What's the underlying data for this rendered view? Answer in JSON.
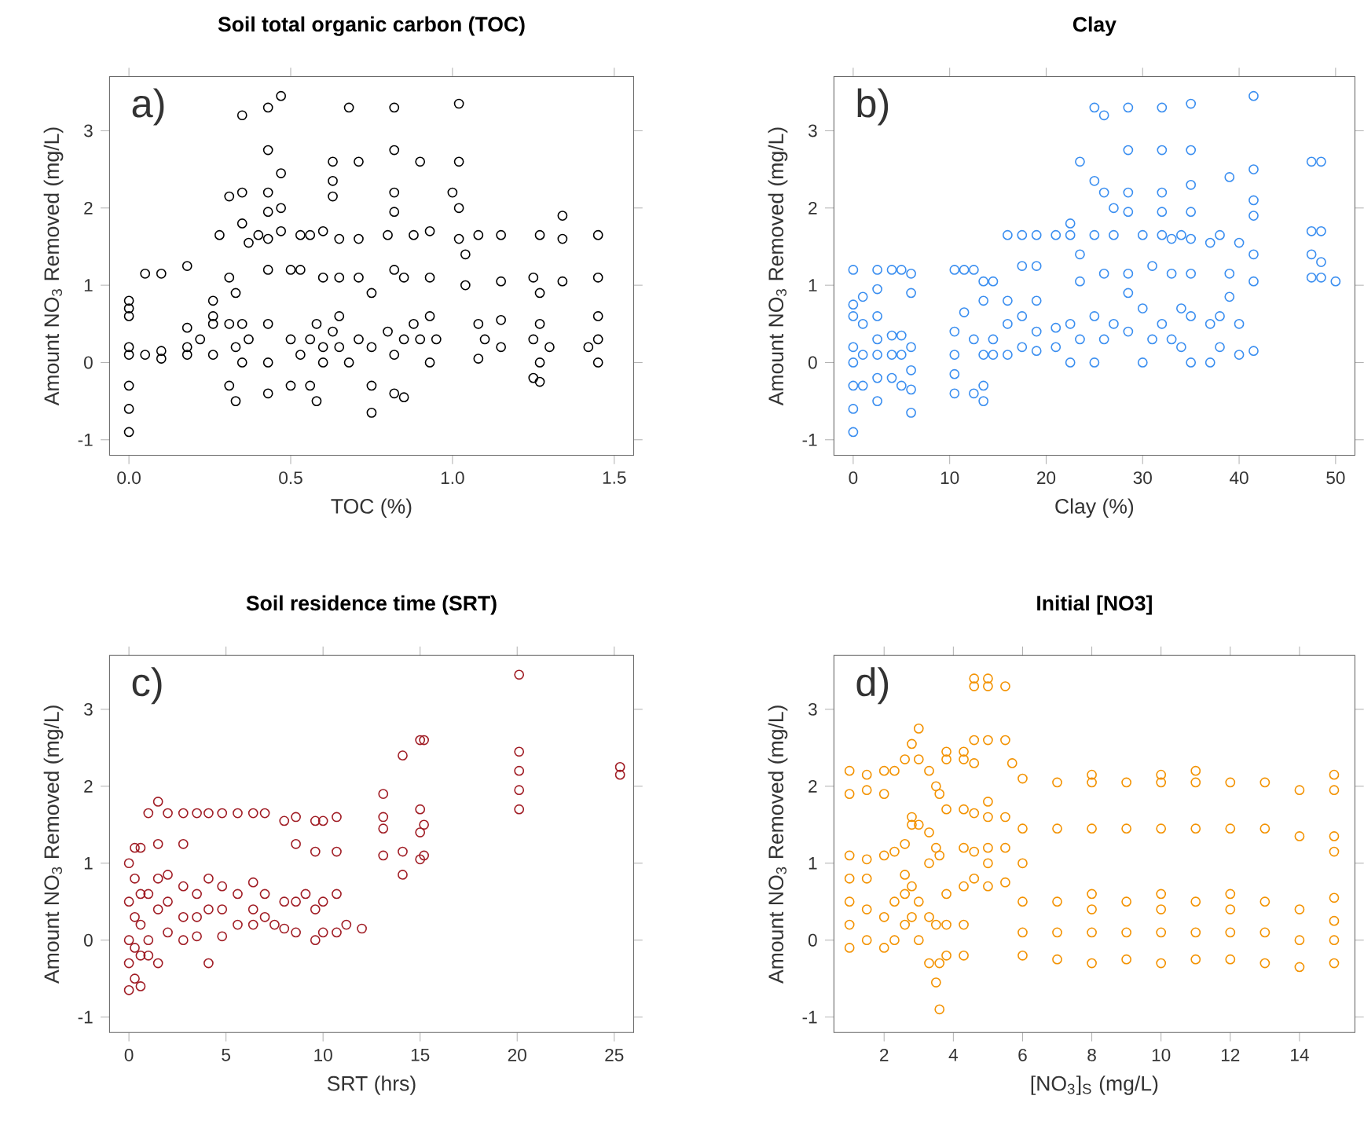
{
  "chart_data": [
    {
      "type": "scatter",
      "title": "Soil total organic carbon (TOC)",
      "xlabel": "TOC (%)",
      "ylabel": "Amount NO$_{3}$ Removed (mg/L)",
      "annotations": [
        "a)"
      ],
      "color": "#000000",
      "marker": "circle",
      "xlim": [
        -0.06,
        1.56
      ],
      "ylim": [
        -1.2,
        3.7
      ],
      "xticks": [
        {
          "value": 0,
          "label": "0.0"
        },
        0.5,
        {
          "value": 1,
          "label": "1.0"
        },
        1.5
      ],
      "yticks": [
        -1,
        0,
        1,
        2,
        3
      ],
      "x": [
        0,
        0,
        0,
        0,
        0,
        0,
        0,
        0,
        0.05,
        0.05,
        0.1,
        0.1,
        0.1,
        0.18,
        0.18,
        0.18,
        0.18,
        0.22,
        0.26,
        0.26,
        0.26,
        0.26,
        0.28,
        0.31,
        0.31,
        0.31,
        0.31,
        0.33,
        0.33,
        0.33,
        0.35,
        0.35,
        0.35,
        0.35,
        0.35,
        0.37,
        0.37,
        0.4,
        0.43,
        0.43,
        0.43,
        0.43,
        0.43,
        0.43,
        0.43,
        0.43,
        0.43,
        0.47,
        0.47,
        0.47,
        0.47,
        0.5,
        0.5,
        0.5,
        0.53,
        0.53,
        0.53,
        0.56,
        0.56,
        0.56,
        0.58,
        0.58,
        0.6,
        0.6,
        0.6,
        0.6,
        0.63,
        0.63,
        0.63,
        0.63,
        0.65,
        0.65,
        0.65,
        0.65,
        0.68,
        0.68,
        0.71,
        0.71,
        0.71,
        0.71,
        0.75,
        0.75,
        0.75,
        0.75,
        0.8,
        0.8,
        0.82,
        0.82,
        0.82,
        0.82,
        0.82,
        0.82,
        0.82,
        0.85,
        0.85,
        0.85,
        0.88,
        0.88,
        0.9,
        0.9,
        0.93,
        0.93,
        0.93,
        0.93,
        0.95,
        1.0,
        1.02,
        1.02,
        1.02,
        1.02,
        1.04,
        1.04,
        1.08,
        1.08,
        1.08,
        1.1,
        1.15,
        1.15,
        1.15,
        1.15,
        1.25,
        1.25,
        1.25,
        1.27,
        1.27,
        1.27,
        1.27,
        1.27,
        1.3,
        1.34,
        1.34,
        1.34,
        1.42,
        1.45,
        1.45,
        1.45,
        1.45,
        1.45
      ],
      "values": [
        0.8,
        0.6,
        0.2,
        0.1,
        -0.3,
        -0.6,
        -0.9,
        0.7,
        1.15,
        0.1,
        1.15,
        0.05,
        0.15,
        1.25,
        0.1,
        0.45,
        0.2,
        0.3,
        0.8,
        0.5,
        0.1,
        0.6,
        1.65,
        2.15,
        1.1,
        0.5,
        -0.3,
        0.9,
        0.2,
        -0.5,
        3.2,
        2.2,
        1.8,
        0.5,
        0,
        1.55,
        0.3,
        1.65,
        3.3,
        2.75,
        2.2,
        1.95,
        1.6,
        1.2,
        0.5,
        0,
        -0.4,
        3.45,
        2.45,
        2.0,
        1.7,
        1.2,
        0.3,
        -0.3,
        1.2,
        1.65,
        0.1,
        1.65,
        0.3,
        -0.3,
        -0.5,
        0.5,
        1.7,
        1.1,
        0.2,
        0,
        2.6,
        2.35,
        2.15,
        0.4,
        1.6,
        1.1,
        0.6,
        0.2,
        3.3,
        0,
        2.6,
        1.6,
        1.1,
        0.3,
        0.9,
        0.2,
        -0.3,
        -0.65,
        1.65,
        0.4,
        3.3,
        2.75,
        2.2,
        1.95,
        1.2,
        0.1,
        -0.4,
        1.1,
        0.3,
        -0.45,
        1.65,
        0.5,
        2.6,
        0.3,
        1.7,
        1.1,
        0.6,
        0,
        0.3,
        2.2,
        3.35,
        2.6,
        2.0,
        1.6,
        1.4,
        1.0,
        1.65,
        0.5,
        0.05,
        0.3,
        1.65,
        1.05,
        0.55,
        0.2,
        1.1,
        0.3,
        -0.2,
        1.65,
        0.9,
        0.5,
        0,
        -0.25,
        0.2,
        1.9,
        1.6,
        1.05,
        0.2,
        1.65,
        1.1,
        0.6,
        0.3,
        0
      ]
    },
    {
      "type": "scatter",
      "title": "Clay",
      "xlabel": "Clay (%)",
      "ylabel": "Amount NO$_{3}$ Removed (mg/L)",
      "annotations": [
        "b)"
      ],
      "color": "#3a8ef0",
      "marker": "circle",
      "xlim": [
        -2,
        52
      ],
      "ylim": [
        -1.2,
        3.7
      ],
      "xticks": [
        0,
        10,
        20,
        30,
        40,
        50
      ],
      "yticks": [
        -1,
        0,
        1,
        2,
        3
      ],
      "x": [
        0,
        0,
        0,
        0,
        0,
        0,
        0,
        0,
        1,
        1,
        1,
        1,
        2.5,
        2.5,
        2.5,
        2.5,
        2.5,
        2.5,
        2.5,
        4,
        4,
        4,
        4,
        5,
        5,
        5,
        5,
        6,
        6,
        6,
        6,
        6,
        6,
        10.5,
        10.5,
        10.5,
        10.5,
        10.5,
        11.5,
        11.5,
        12.5,
        12.5,
        12.5,
        13.5,
        13.5,
        13.5,
        13.5,
        13.5,
        14.5,
        14.5,
        14.5,
        16,
        16,
        16,
        16,
        17.5,
        17.5,
        17.5,
        17.5,
        19,
        19,
        19,
        19,
        19,
        21,
        21,
        21,
        22.5,
        22.5,
        22.5,
        22.5,
        23.5,
        23.5,
        23.5,
        23.5,
        25,
        25,
        25,
        25,
        25,
        26,
        26,
        26,
        26,
        27,
        27,
        27,
        28.5,
        28.5,
        28.5,
        28.5,
        28.5,
        28.5,
        28.5,
        30,
        30,
        30,
        31,
        31,
        32,
        32,
        32,
        32,
        32,
        32,
        33,
        33,
        33,
        34,
        34,
        34,
        35,
        35,
        35,
        35,
        35,
        35,
        35,
        35,
        37,
        37,
        37,
        38,
        38,
        38,
        39,
        39,
        39,
        40,
        40,
        40,
        41.5,
        41.5,
        41.5,
        41.5,
        41.5,
        41.5,
        41.5,
        47.5,
        47.5,
        47.5,
        47.5,
        48.5,
        48.5,
        48.5,
        48.5,
        50
      ],
      "values": [
        1.2,
        0.75,
        0.6,
        0.2,
        0,
        -0.3,
        -0.6,
        -0.9,
        0.85,
        0.5,
        0.1,
        -0.3,
        1.2,
        0.95,
        0.6,
        0.3,
        0.1,
        -0.2,
        -0.5,
        1.2,
        0.35,
        0.1,
        -0.2,
        1.2,
        0.35,
        0.1,
        -0.3,
        1.15,
        0.9,
        0.2,
        -0.1,
        -0.35,
        -0.65,
        1.2,
        0.4,
        0.1,
        -0.15,
        -0.4,
        0.65,
        1.2,
        1.2,
        0.3,
        -0.4,
        1.05,
        0.8,
        0.1,
        -0.3,
        -0.5,
        1.05,
        0.3,
        0.1,
        1.65,
        0.8,
        0.5,
        0.1,
        1.25,
        1.65,
        0.6,
        0.2,
        1.25,
        1.65,
        0.8,
        0.4,
        0.15,
        1.65,
        0.45,
        0.2,
        1.8,
        1.65,
        0.5,
        0,
        2.6,
        1.4,
        1.05,
        0.3,
        3.3,
        2.35,
        1.65,
        0.6,
        0,
        2.2,
        3.2,
        1.15,
        0.3,
        2.0,
        1.65,
        0.5,
        3.3,
        2.75,
        2.2,
        1.95,
        1.15,
        0.9,
        0.4,
        1.65,
        0.7,
        0,
        1.25,
        0.3,
        3.3,
        2.75,
        2.2,
        1.95,
        1.65,
        0.5,
        1.15,
        1.6,
        0.3,
        1.65,
        0.7,
        0.2,
        3.35,
        2.75,
        2.3,
        1.95,
        1.6,
        1.15,
        0.6,
        0,
        1.55,
        0.5,
        0,
        1.65,
        0.6,
        0.2,
        2.4,
        1.15,
        0.85,
        1.55,
        0.5,
        0.1,
        3.45,
        2.5,
        2.1,
        1.9,
        1.4,
        1.05,
        0.15,
        2.6,
        1.7,
        1.4,
        1.1,
        2.6,
        1.7,
        1.3,
        1.1,
        1.05
      ]
    },
    {
      "type": "scatter",
      "title": "Soil residence time (SRT)",
      "xlabel": "SRT (hrs)",
      "ylabel": "Amount NO$_{3}$ Removed (mg/L)",
      "annotations": [
        "c)"
      ],
      "color": "#a01c24",
      "marker": "circle",
      "xlim": [
        -1,
        26
      ],
      "ylim": [
        -1.2,
        3.7
      ],
      "xticks": [
        0,
        5,
        10,
        15,
        20,
        25
      ],
      "yticks": [
        -1,
        0,
        1,
        2,
        3
      ],
      "x": [
        0,
        0,
        0,
        0,
        0,
        0.3,
        0.3,
        0.3,
        0.3,
        0.3,
        0.6,
        0.6,
        0.6,
        0.6,
        0.6,
        1,
        1,
        1,
        1,
        1.5,
        1.5,
        1.5,
        1.5,
        1.5,
        2,
        2,
        2,
        2,
        2.8,
        2.8,
        2.8,
        2.8,
        2.8,
        3.5,
        3.5,
        3.5,
        3.5,
        4.1,
        4.1,
        4.1,
        4.1,
        4.8,
        4.8,
        4.8,
        4.8,
        5.6,
        5.6,
        5.6,
        6.4,
        6.4,
        6.4,
        6.4,
        7,
        7,
        7,
        7.5,
        8,
        8,
        8,
        8.6,
        8.6,
        8.6,
        8.6,
        9.1,
        9.6,
        9.6,
        9.6,
        9.6,
        10,
        10,
        10,
        10.7,
        10.7,
        10.7,
        10.7,
        11.2,
        12,
        13.1,
        13.1,
        13.1,
        13.1,
        14.1,
        14.1,
        14.1,
        15,
        15,
        15,
        15,
        15.2,
        15.2,
        15.2,
        20.1,
        20.1,
        20.1,
        20.1,
        20.1,
        25.3,
        25.3
      ],
      "values": [
        1.0,
        0.5,
        0,
        -0.3,
        -0.65,
        1.2,
        0.8,
        0.3,
        -0.1,
        -0.5,
        1.2,
        0.6,
        0.2,
        -0.2,
        -0.6,
        1.65,
        0.6,
        0,
        -0.2,
        1.8,
        1.25,
        0.8,
        0.4,
        -0.3,
        1.65,
        0.85,
        0.5,
        0.1,
        1.65,
        1.25,
        0.7,
        0.3,
        0,
        1.65,
        0.6,
        0.3,
        0.05,
        1.65,
        0.8,
        0.4,
        -0.3,
        1.65,
        0.7,
        0.4,
        0.05,
        1.65,
        0.6,
        0.2,
        1.65,
        0.75,
        0.4,
        0.2,
        1.65,
        0.6,
        0.3,
        0.2,
        1.55,
        0.5,
        0.15,
        1.6,
        1.25,
        0.5,
        0.1,
        0.6,
        1.55,
        1.15,
        0.4,
        0,
        1.55,
        0.5,
        0.1,
        1.6,
        1.15,
        0.6,
        0.1,
        0.2,
        0.15,
        1.9,
        1.6,
        1.45,
        1.1,
        2.4,
        1.15,
        0.85,
        2.6,
        1.7,
        1.4,
        1.05,
        2.6,
        1.5,
        1.1,
        3.45,
        2.45,
        2.2,
        1.95,
        1.7,
        2.25,
        2.15
      ]
    },
    {
      "type": "scatter",
      "title": "Initial [NO3]",
      "xlabel": "[NO$_{3}$]$_{S}$ (mg/L)",
      "ylabel": "Amount NO$_{3}$ Removed (mg/L)",
      "annotations": [
        "d)"
      ],
      "color": "#f39200",
      "marker": "circle",
      "xlim": [
        0.55,
        15.6
      ],
      "ylim": [
        -1.2,
        3.7
      ],
      "xticks": [
        2,
        4,
        6,
        8,
        10,
        12,
        14
      ],
      "yticks": [
        -1,
        0,
        1,
        2,
        3
      ],
      "x": [
        1,
        1,
        1,
        1,
        1,
        1,
        1,
        1.5,
        1.5,
        1.5,
        1.5,
        1.5,
        1.5,
        2,
        2,
        2,
        2,
        2,
        2.3,
        2.3,
        2.3,
        2.3,
        2.6,
        2.6,
        2.6,
        2.6,
        2.6,
        2.8,
        2.8,
        2.8,
        2.8,
        2.8,
        3,
        3,
        3,
        3,
        3,
        3.3,
        3.3,
        3.3,
        3.3,
        3.3,
        3.5,
        3.5,
        3.5,
        3.5,
        3.6,
        3.6,
        3.6,
        3.6,
        3.8,
        3.8,
        3.8,
        3.8,
        3.8,
        3.8,
        4.3,
        4.3,
        4.3,
        4.3,
        4.3,
        4.3,
        4.3,
        4.6,
        4.6,
        4.6,
        4.6,
        4.6,
        4.6,
        4.6,
        5,
        5,
        5,
        5,
        5,
        5,
        5,
        5,
        5.5,
        5.5,
        5.5,
        5.5,
        5.5,
        5.7,
        6,
        6,
        6,
        6,
        6,
        6,
        7,
        7,
        7,
        7,
        7,
        8,
        8,
        8,
        8,
        8,
        8,
        8,
        9,
        9,
        9,
        9,
        9,
        10,
        10,
        10,
        10,
        10,
        10,
        10,
        11,
        11,
        11,
        11,
        11,
        11,
        12,
        12,
        12,
        12,
        12,
        12,
        13,
        13,
        13,
        13,
        13,
        14,
        14,
        14,
        14,
        14,
        15,
        15,
        15,
        15,
        15,
        15,
        15,
        15
      ],
      "values": [
        2.2,
        1.9,
        1.1,
        0.8,
        0.5,
        0.2,
        -0.1,
        2.15,
        1.95,
        1.05,
        0.8,
        0.4,
        0,
        2.2,
        1.9,
        1.1,
        0.3,
        -0.1,
        2.2,
        1.15,
        0.5,
        0,
        2.35,
        1.25,
        0.85,
        0.6,
        0.2,
        2.55,
        1.6,
        1.5,
        0.7,
        0.3,
        2.75,
        2.35,
        1.5,
        0.5,
        0,
        2.2,
        1.4,
        1.0,
        0.3,
        -0.3,
        2.0,
        1.2,
        0.2,
        -0.55,
        1.9,
        1.1,
        -0.9,
        -0.3,
        2.45,
        2.35,
        1.7,
        0.6,
        0.2,
        -0.2,
        2.45,
        2.35,
        1.7,
        1.2,
        0.7,
        0.2,
        -0.2,
        3.4,
        3.3,
        2.6,
        2.3,
        1.65,
        1.15,
        0.8,
        3.4,
        3.3,
        2.6,
        1.8,
        1.6,
        1.2,
        1.0,
        0.7,
        3.3,
        2.6,
        1.6,
        1.2,
        0.75,
        2.3,
        2.1,
        1.45,
        1.0,
        0.5,
        0.1,
        -0.2,
        2.05,
        1.45,
        0.5,
        0.1,
        -0.25,
        2.15,
        2.05,
        1.45,
        0.6,
        0.4,
        0.1,
        -0.3,
        2.05,
        1.45,
        0.5,
        0.1,
        -0.25,
        2.15,
        2.05,
        1.45,
        0.6,
        0.4,
        0.1,
        -0.3,
        2.2,
        2.05,
        1.45,
        0.5,
        0.1,
        -0.25,
        2.05,
        1.45,
        0.6,
        0.4,
        0.1,
        -0.25,
        2.05,
        1.45,
        0.5,
        0.1,
        -0.3,
        1.95,
        1.35,
        0.4,
        0,
        -0.35,
        2.15,
        1.95,
        1.35,
        1.15,
        0.55,
        0.25,
        0,
        -0.3
      ]
    }
  ]
}
